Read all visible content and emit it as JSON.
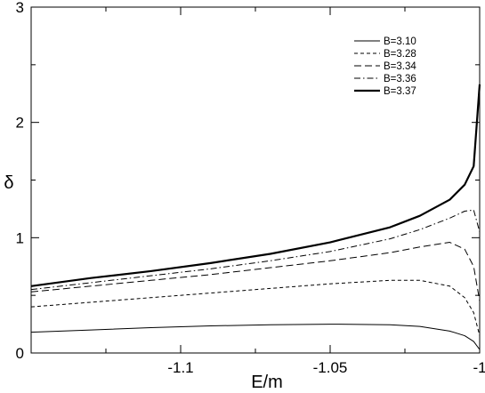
{
  "chart_data": {
    "type": "line",
    "xlabel": "E/m",
    "ylabel": "δ",
    "xlim": [
      -1.15,
      -1.0
    ],
    "ylim": [
      0,
      3
    ],
    "xticks": [
      -1.1,
      -1.05,
      -1.0
    ],
    "xtick_labels": [
      "-1.1",
      "-1.05",
      "-1"
    ],
    "yticks": [
      0,
      1,
      2,
      3
    ],
    "ytick_labels": [
      "0",
      "1",
      "2",
      "3"
    ],
    "legend_position": "top-right",
    "grid": false,
    "series": [
      {
        "name": "B=3.10",
        "style": "solid-thin",
        "x": [
          -1.15,
          -1.13,
          -1.11,
          -1.09,
          -1.07,
          -1.05,
          -1.03,
          -1.02,
          -1.01,
          -1.005,
          -1.002,
          -1.0
        ],
        "y": [
          0.18,
          0.2,
          0.22,
          0.235,
          0.245,
          0.25,
          0.245,
          0.23,
          0.19,
          0.15,
          0.1,
          0.03
        ]
      },
      {
        "name": "B=3.28",
        "style": "dashed-short",
        "x": [
          -1.15,
          -1.13,
          -1.11,
          -1.09,
          -1.07,
          -1.05,
          -1.03,
          -1.02,
          -1.01,
          -1.005,
          -1.002,
          -1.0
        ],
        "y": [
          0.4,
          0.44,
          0.48,
          0.52,
          0.56,
          0.6,
          0.63,
          0.63,
          0.58,
          0.48,
          0.35,
          0.15
        ]
      },
      {
        "name": "B=3.34",
        "style": "dashed-long",
        "x": [
          -1.15,
          -1.13,
          -1.11,
          -1.09,
          -1.07,
          -1.05,
          -1.03,
          -1.02,
          -1.01,
          -1.005,
          -1.002,
          -1.0
        ],
        "y": [
          0.53,
          0.58,
          0.63,
          0.68,
          0.74,
          0.8,
          0.87,
          0.92,
          0.96,
          0.9,
          0.75,
          0.45
        ]
      },
      {
        "name": "B=3.36",
        "style": "dash-dot",
        "x": [
          -1.15,
          -1.13,
          -1.11,
          -1.09,
          -1.07,
          -1.05,
          -1.03,
          -1.02,
          -1.01,
          -1.005,
          -1.002,
          -1.0
        ],
        "y": [
          0.55,
          0.61,
          0.67,
          0.73,
          0.8,
          0.88,
          0.99,
          1.07,
          1.17,
          1.23,
          1.24,
          1.05
        ]
      },
      {
        "name": "B=3.37",
        "style": "solid-thick",
        "x": [
          -1.15,
          -1.13,
          -1.11,
          -1.09,
          -1.07,
          -1.05,
          -1.03,
          -1.02,
          -1.01,
          -1.005,
          -1.002,
          -1.0
        ],
        "y": [
          0.58,
          0.65,
          0.71,
          0.78,
          0.86,
          0.96,
          1.09,
          1.19,
          1.33,
          1.46,
          1.62,
          2.33
        ]
      }
    ]
  }
}
